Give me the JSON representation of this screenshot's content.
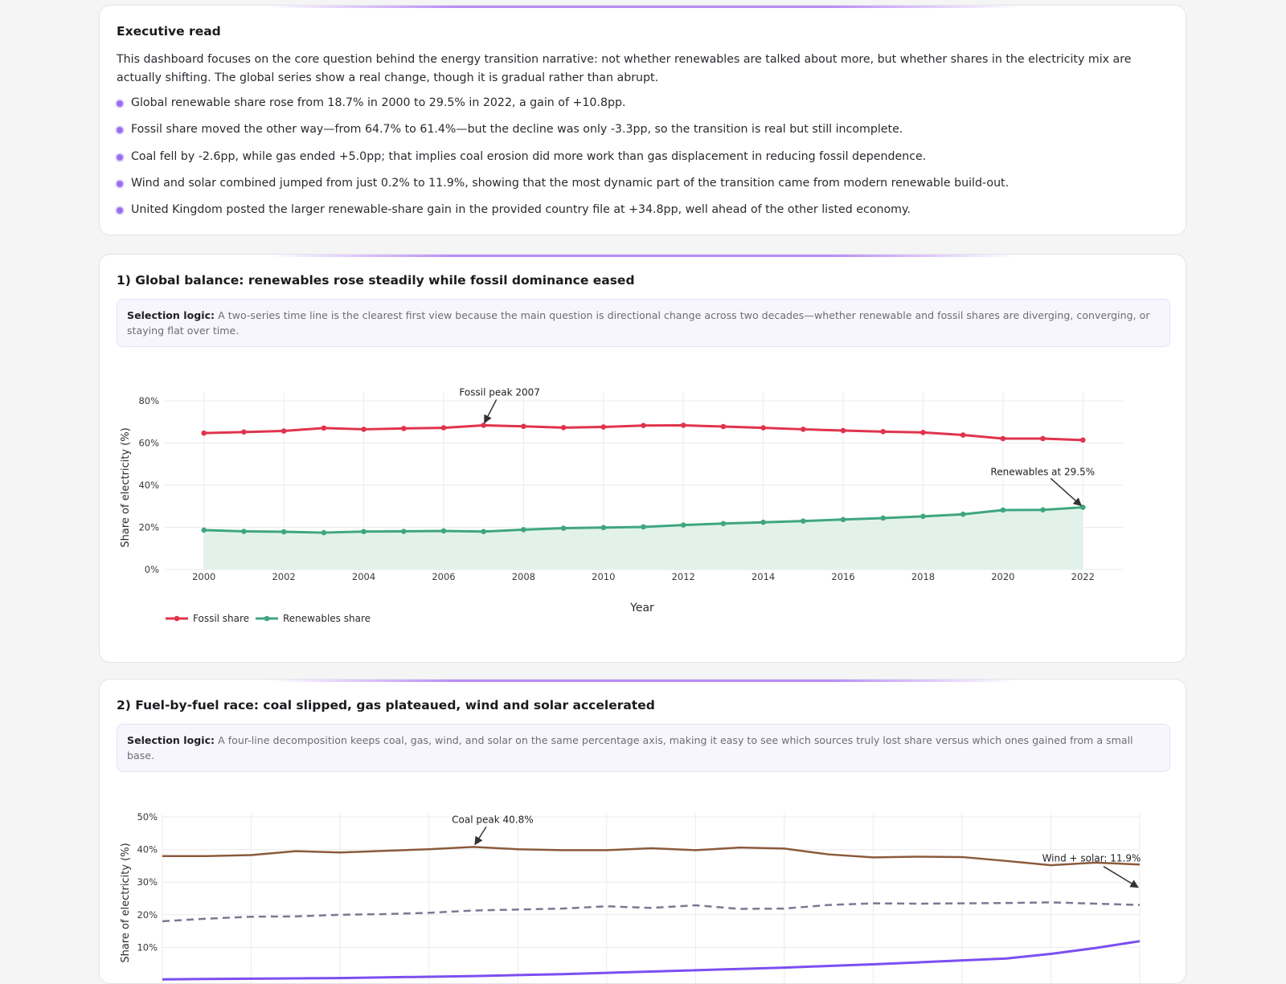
{
  "executive": {
    "title": "Executive read",
    "paragraph": "This dashboard focuses on the core question behind the energy transition narrative: not whether renewables are talked about more, but whether shares in the electricity mix are actually shifting. The global series show a real change, though it is gradual rather than abrupt.",
    "bullets": [
      "Global renewable share rose from 18.7% in 2000 to 29.5% in 2022, a gain of +10.8pp.",
      "Fossil share moved the other way—from 64.7% to 61.4%—but the decline was only -3.3pp, so the transition is real but still incomplete.",
      "Coal fell by -2.6pp, while gas ended +5.0pp; that implies coal erosion did more work than gas displacement in reducing fossil dependence.",
      "Wind and solar combined jumped from just 0.2% to 11.9%, showing that the most dynamic part of the transition came from modern renewable build-out.",
      "United Kingdom posted the larger renewable-share gain in the provided country file at +34.8pp, well ahead of the other listed economy."
    ]
  },
  "section1": {
    "title": "1) Global balance: renewables rose steadily while fossil dominance eased",
    "logic_label": "Selection logic:",
    "logic_text": " A two-series time line is the clearest first view because the main question is directional change across two decades—whether renewable and fossil shares are diverging, converging, or staying flat over time."
  },
  "section2": {
    "title": "2) Fuel-by-fuel race: coal slipped, gas plateaued, wind and solar accelerated",
    "logic_label": "Selection logic:",
    "logic_text": " A four-line decomposition keeps coal, gas, wind, and solar on the same percentage axis, making it easy to see which sources truly lost share versus which ones gained from a small base."
  },
  "colors": {
    "fossil": "#e0344d",
    "renewables": "#3fa67f",
    "renew_fill": "#e2f2eb",
    "coal": "#8b5a3c",
    "gas": "#7b7894",
    "windsolar": "#7b4ff0"
  },
  "chart_data": [
    {
      "type": "line",
      "xlabel": "Year",
      "ylabel": "Share of electricity (%)",
      "ylim": [
        0,
        80
      ],
      "xlim": [
        1999,
        2023
      ],
      "yticks": [
        "0%",
        "20%",
        "40%",
        "60%",
        "80%"
      ],
      "xticks": [
        "2000",
        "2002",
        "2004",
        "2006",
        "2008",
        "2010",
        "2012",
        "2014",
        "2016",
        "2018",
        "2020",
        "2022"
      ],
      "x": [
        2000,
        2001,
        2002,
        2003,
        2004,
        2005,
        2006,
        2007,
        2008,
        2009,
        2010,
        2011,
        2012,
        2013,
        2014,
        2015,
        2016,
        2017,
        2018,
        2019,
        2020,
        2021,
        2022
      ],
      "series": [
        {
          "name": "Fossil share",
          "values": [
            64.7,
            65.2,
            65.7,
            67.1,
            66.5,
            66.9,
            67.2,
            68.4,
            67.9,
            67.3,
            67.6,
            68.3,
            68.4,
            67.8,
            67.2,
            66.5,
            65.9,
            65.4,
            65.0,
            63.8,
            62.1,
            62.1,
            61.4
          ]
        },
        {
          "name": "Renewables share",
          "values": [
            18.7,
            18.1,
            17.9,
            17.5,
            18.0,
            18.1,
            18.3,
            18.0,
            18.9,
            19.6,
            19.9,
            20.2,
            21.1,
            21.8,
            22.4,
            23.0,
            23.7,
            24.4,
            25.2,
            26.2,
            28.2,
            28.3,
            29.5
          ]
        }
      ],
      "annotations": [
        {
          "text": "Fossil peak 2007",
          "x": 2007,
          "y": 68.4
        },
        {
          "text": "Renewables at 29.5%",
          "x": 2022,
          "y": 29.5
        }
      ],
      "legend": "bottom-left"
    },
    {
      "type": "line",
      "ylabel": "Share of electricity (%)",
      "ylim": [
        0,
        50
      ],
      "xlim": [
        2000,
        2022
      ],
      "yticks": [
        "10%",
        "20%",
        "30%",
        "40%",
        "50%"
      ],
      "x": [
        2000,
        2001,
        2002,
        2003,
        2004,
        2005,
        2006,
        2007,
        2008,
        2009,
        2010,
        2011,
        2012,
        2013,
        2014,
        2015,
        2016,
        2017,
        2018,
        2019,
        2020,
        2021,
        2022
      ],
      "series": [
        {
          "values": [
            38.0,
            38.0,
            38.3,
            39.5,
            39.1,
            39.6,
            40.1,
            40.8,
            40.1,
            39.8,
            39.8,
            40.4,
            39.8,
            40.6,
            40.3,
            38.5,
            37.6,
            37.8,
            37.7,
            36.5,
            35.2,
            36.0,
            35.4
          ]
        },
        {
          "values": [
            18.0,
            18.8,
            19.4,
            19.5,
            20.0,
            20.2,
            20.6,
            21.3,
            21.6,
            21.9,
            22.6,
            22.1,
            22.9,
            21.8,
            21.9,
            23.0,
            23.5,
            23.4,
            23.5,
            23.6,
            23.8,
            23.4,
            23.0
          ]
        },
        {
          "values": [
            0.2,
            0.3,
            0.4,
            0.5,
            0.6,
            0.8,
            1.0,
            1.2,
            1.5,
            1.8,
            2.2,
            2.6,
            3.0,
            3.4,
            3.8,
            4.3,
            4.8,
            5.4,
            6.0,
            6.6,
            8.0,
            9.8,
            11.9
          ]
        }
      ],
      "annotations": [
        {
          "text": "Coal peak 40.8%",
          "x": 2007,
          "y": 40.8
        },
        {
          "text": "Wind + solar: 11.9%",
          "x": 2022,
          "y": 11.9
        }
      ]
    }
  ]
}
